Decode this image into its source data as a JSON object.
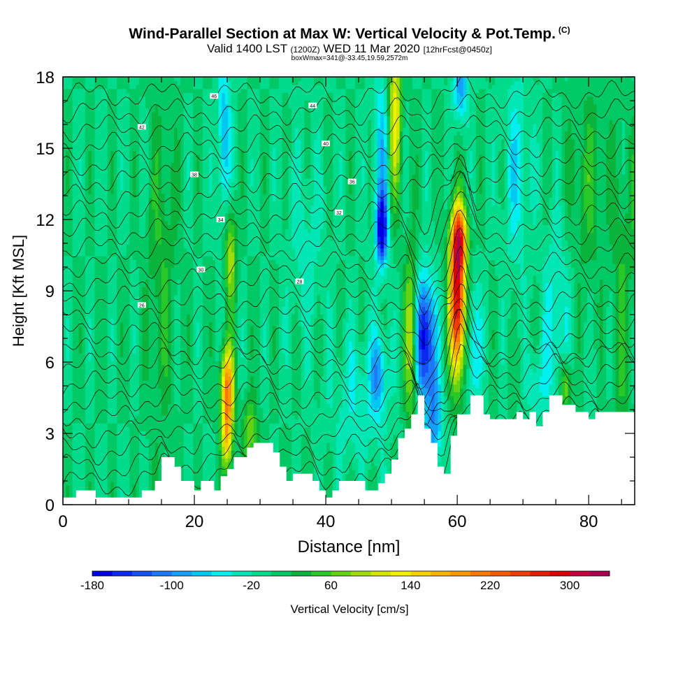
{
  "header": {
    "title": "Wind-Parallel Section at Max W: Vertical Velocity & Pot.Temp.",
    "copyright": "(C)",
    "valid_prefix": "Valid 1400 LST",
    "valid_zulu": "(1200Z)",
    "valid_date": "WED 11 Mar 2020",
    "forecast": "[12hrFcst@0450z]",
    "box_info": "boxWmax=341@-33.45,19.59,2572m"
  },
  "colorbar": {
    "label": "Vertical Velocity [cm/s]",
    "tick_labels": [
      "-180",
      "-100",
      "-20",
      "60",
      "140",
      "220",
      "300"
    ],
    "colors": [
      "#0000e6",
      "#0a28f0",
      "#1450f5",
      "#1e78fa",
      "#14a0fa",
      "#00c8f0",
      "#00f0f0",
      "#00e6b4",
      "#00dc8c",
      "#00c864",
      "#0ab43c",
      "#28c828",
      "#64d214",
      "#a0dc0a",
      "#d2e600",
      "#f0f000",
      "#f5d200",
      "#fab400",
      "#fa9600",
      "#fa7800",
      "#f55a00",
      "#f03c00",
      "#e61e00",
      "#dc0000",
      "#c8003c",
      "#aa0050"
    ]
  },
  "chart_data": {
    "type": "heatmap",
    "xlabel": "Distance [nm]",
    "ylabel": "Height [Kft MSL]",
    "xlim": [
      0,
      87
    ],
    "ylim": [
      0,
      18
    ],
    "xticks": [
      0,
      20,
      40,
      60,
      80
    ],
    "yticks": [
      0,
      3,
      6,
      9,
      12,
      15,
      18
    ],
    "colorbar_range": [
      -180,
      340
    ],
    "colorbar_step": 20,
    "background_velocity": 0,
    "velocity_features": [
      {
        "x": 25,
        "z": 5.0,
        "w": 200,
        "sx": 0.7,
        "sz": 1.2
      },
      {
        "x": 25,
        "z": 2.8,
        "w": 140,
        "sx": 0.6,
        "sz": 1.0
      },
      {
        "x": 28.5,
        "z": 3.0,
        "w": 80,
        "sx": 0.8,
        "sz": 1.0
      },
      {
        "x": 24.5,
        "z": 15.5,
        "w": -80,
        "sx": 0.7,
        "sz": 2.5
      },
      {
        "x": 25.5,
        "z": 10.5,
        "w": 100,
        "sx": 0.6,
        "sz": 1.5
      },
      {
        "x": 48.5,
        "z": 11.6,
        "w": -160,
        "sx": 0.6,
        "sz": 1.0
      },
      {
        "x": 48.5,
        "z": 14.5,
        "w": -70,
        "sx": 0.9,
        "sz": 3.0
      },
      {
        "x": 48.0,
        "z": 5.5,
        "w": -80,
        "sx": 0.8,
        "sz": 1.2
      },
      {
        "x": 50.5,
        "z": 16.5,
        "w": 130,
        "sx": 0.7,
        "sz": 2.5
      },
      {
        "x": 53.0,
        "z": 7.0,
        "w": 120,
        "sx": 0.7,
        "sz": 2.5
      },
      {
        "x": 55.0,
        "z": 7.0,
        "w": -180,
        "sx": 1.1,
        "sz": 1.8
      },
      {
        "x": 56.5,
        "z": 3.5,
        "w": -90,
        "sx": 0.9,
        "sz": 1.5
      },
      {
        "x": 60.0,
        "z": 8.5,
        "w": 300,
        "sx": 0.8,
        "sz": 2.2
      },
      {
        "x": 60.3,
        "z": 11.2,
        "w": 190,
        "sx": 0.9,
        "sz": 1.0
      },
      {
        "x": 60.5,
        "z": 17.5,
        "w": -90,
        "sx": 0.8,
        "sz": 1.0
      },
      {
        "x": 62.5,
        "z": 6.5,
        "w": -60,
        "sx": 0.8,
        "sz": 2.0
      },
      {
        "x": 15.0,
        "z": 10.0,
        "w": 40,
        "sx": 1.5,
        "sz": 5.0
      },
      {
        "x": 45.0,
        "z": 4.5,
        "w": -40,
        "sx": 3.0,
        "sz": 2.0
      },
      {
        "x": 75.0,
        "z": 7.5,
        "w": -50,
        "sx": 1.5,
        "sz": 3.0
      },
      {
        "x": 80.0,
        "z": 13.5,
        "w": 40,
        "sx": 2.0,
        "sz": 3.0
      },
      {
        "x": 85.0,
        "z": 8.0,
        "w": 40,
        "sx": 1.0,
        "sz": 5.0
      },
      {
        "x": 37.0,
        "z": 11.0,
        "w": -30,
        "sx": 2.0,
        "sz": 3.0
      },
      {
        "x": 69.0,
        "z": 14.0,
        "w": -50,
        "sx": 1.5,
        "sz": 3.0
      },
      {
        "x": 72.0,
        "z": 5.0,
        "w": -40,
        "sx": 1.0,
        "sz": 1.0
      },
      {
        "x": 76.5,
        "z": 5.0,
        "w": 100,
        "sx": 0.6,
        "sz": 0.8
      },
      {
        "x": 88.0,
        "z": 12.0,
        "w": 50,
        "sx": 1.0,
        "sz": 3.0
      }
    ],
    "terrain": {
      "x": [
        0,
        2,
        5,
        7,
        10,
        12,
        14,
        15,
        17,
        18,
        20,
        21,
        23,
        24,
        25,
        26,
        27,
        28,
        29,
        30,
        31,
        32,
        33,
        34,
        35,
        36,
        37,
        38,
        39,
        40,
        41,
        42,
        43,
        44,
        45,
        46,
        47,
        48,
        49,
        50,
        51,
        52,
        53,
        54,
        55,
        56,
        57,
        58,
        59,
        60,
        61,
        62,
        63,
        64,
        65,
        66,
        67,
        68,
        69,
        70,
        71,
        72,
        73,
        74,
        75,
        76,
        77,
        78,
        79,
        80,
        81,
        82,
        83,
        84,
        85,
        86,
        87
      ],
      "z": [
        0.3,
        0.6,
        0.3,
        0.3,
        0.3,
        0.6,
        1.0,
        2.0,
        1.6,
        1.0,
        0.6,
        1.0,
        0.6,
        1.2,
        1.5,
        2.0,
        2.0,
        2.4,
        2.6,
        2.6,
        2.6,
        2.2,
        1.6,
        1.0,
        1.3,
        1.3,
        1.3,
        1.0,
        0.6,
        0.3,
        0.6,
        1.0,
        1.0,
        1.0,
        1.0,
        0.6,
        0.6,
        0.9,
        1.3,
        1.9,
        2.8,
        3.2,
        3.8,
        4.6,
        3.2,
        2.6,
        1.6,
        1.3,
        2.9,
        3.8,
        3.8,
        4.6,
        4.6,
        3.8,
        3.6,
        3.6,
        3.6,
        3.6,
        3.9,
        3.6,
        3.9,
        3.3,
        3.9,
        4.6,
        4.6,
        4.2,
        4.2,
        3.9,
        3.9,
        3.6,
        3.9,
        3.9,
        3.9,
        3.9,
        3.9,
        3.9,
        3.9
      ]
    },
    "theta_contour_labels": [
      "46",
      "44",
      "42",
      "40",
      "38",
      "36",
      "34",
      "32",
      "30",
      "28",
      "26"
    ],
    "theta_contours_count": 24
  }
}
